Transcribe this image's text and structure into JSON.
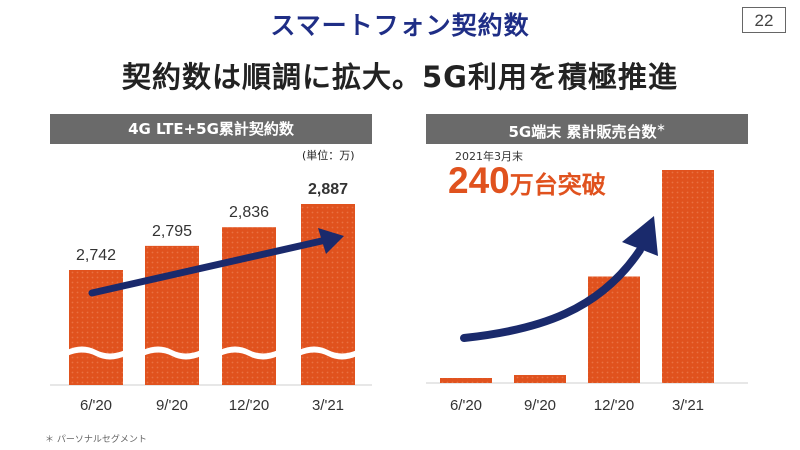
{
  "page": {
    "title": "スマートフォン契約数",
    "number": "22",
    "headline": "契約数は順調に拡大。5G利用を積極推進",
    "footnote": "＊ パーソナルセグメント"
  },
  "colors": {
    "bar": "#e0521e",
    "arrow": "#1a2a6c",
    "header_bg": "#6a6a6a",
    "accent_text": "#e0521e",
    "title": "#1f2e86"
  },
  "left_panel": {
    "header": "4G LTE+5G累計契約数",
    "unit": "(単位：万)"
  },
  "right_panel": {
    "header": "5G端末 累計販売台数",
    "header_note": "＊",
    "date_label": "2021年3月末",
    "highlight_number": "240",
    "highlight_suffix": "万台突破"
  },
  "chart_data": [
    {
      "type": "bar",
      "title": "4G LTE+5G累計契約数",
      "unit": "万",
      "categories": [
        "6/'20",
        "9/'20",
        "12/'20",
        "3/'21"
      ],
      "values": [
        2742,
        2795,
        2836,
        2887
      ],
      "labels": [
        "2,742",
        "2,795",
        "2,836",
        "2,887"
      ],
      "axis_break": true,
      "trend_arrow": true
    },
    {
      "type": "bar",
      "title": "5G端末 累計販売台数",
      "unit": "万台",
      "categories": [
        "6/'20",
        "9/'20",
        "12/'20",
        "3/'21"
      ],
      "values": [
        2.4,
        9,
        120,
        240
      ],
      "trend_arrow": true
    }
  ]
}
